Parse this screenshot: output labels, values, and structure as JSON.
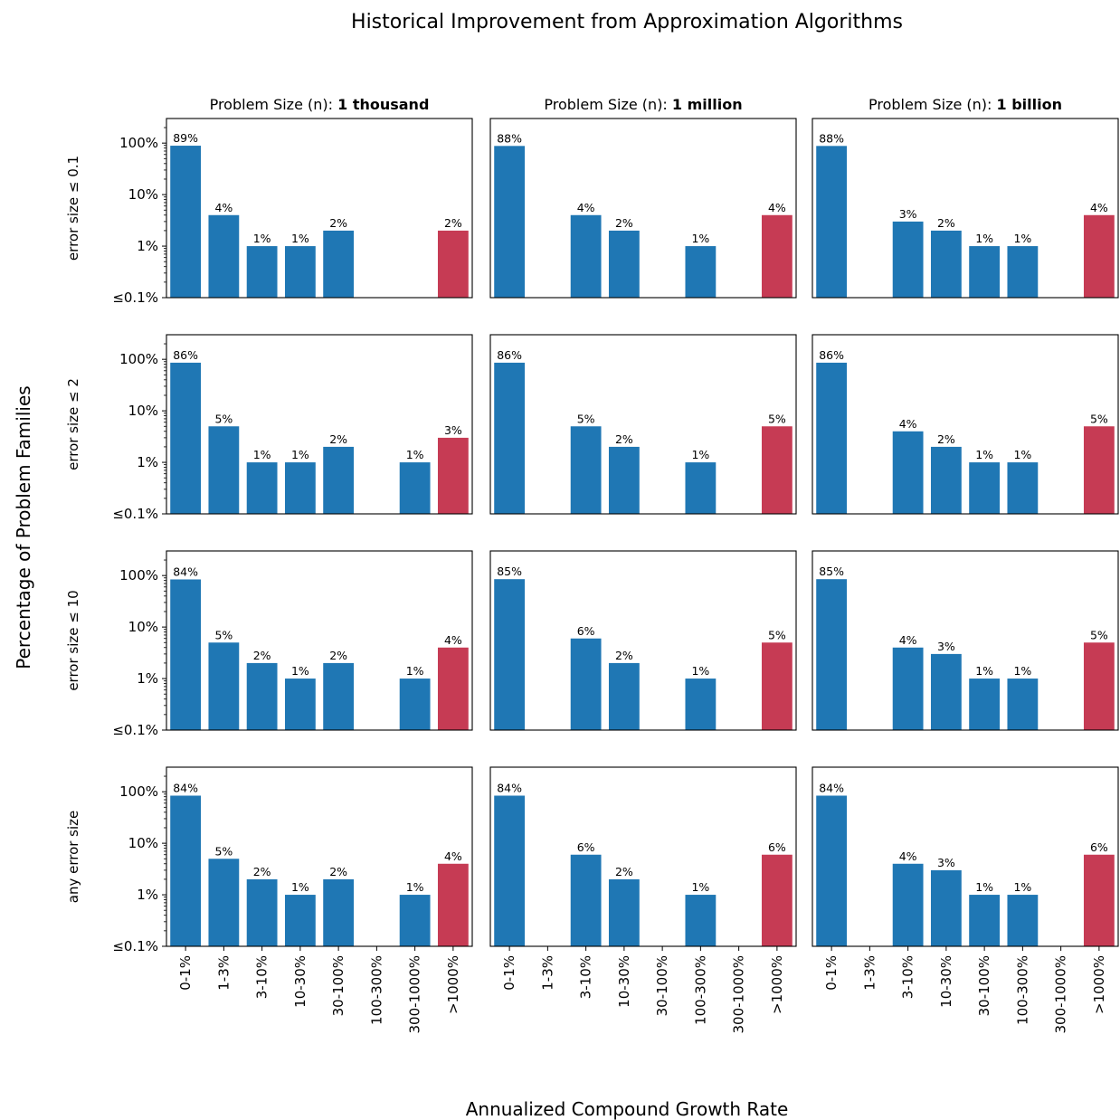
{
  "chart_data": {
    "type": "bar",
    "title": "Historical Improvement from Approximation Algorithms",
    "xlabel": "Annualized Compound Growth Rate",
    "ylabel": "Percentage of Problem Families",
    "yscale": "log",
    "ylim": [
      0.1,
      300
    ],
    "ytick_labels": [
      "≤0.1%",
      "1%",
      "10%",
      "100%"
    ],
    "ytick_values": [
      0.1,
      1,
      10,
      100
    ],
    "col_title_prefix": "Problem Size (n): ",
    "columns": [
      "1 thousand",
      "1 million",
      "1 billion"
    ],
    "rows": [
      "error size ≤ 0.1",
      "error size ≤ 2",
      "error size ≤ 10",
      "any error size"
    ],
    "categories": [
      "0-1%",
      "1-3%",
      "3-10%",
      "10-30%",
      "30-100%",
      "100-300%",
      "300-1000%",
      ">1000%"
    ],
    "colors": {
      "normal": "#1f77b4",
      "highlight": "#c63b54"
    },
    "highlight_category": ">1000%",
    "panels": [
      {
        "row": 0,
        "col": 0,
        "values": [
          89,
          4,
          1,
          1,
          2,
          null,
          null,
          2
        ],
        "labels": [
          "89%",
          "4%",
          "1%",
          "1%",
          "2%",
          "",
          "",
          "2%"
        ]
      },
      {
        "row": 0,
        "col": 1,
        "values": [
          88,
          null,
          4,
          2,
          null,
          1,
          null,
          4
        ],
        "labels": [
          "88%",
          "",
          "4%",
          "2%",
          "",
          "1%",
          "",
          "4%"
        ]
      },
      {
        "row": 0,
        "col": 2,
        "values": [
          88,
          null,
          3,
          2,
          1,
          1,
          null,
          4
        ],
        "labels": [
          "88%",
          "",
          "3%",
          "2%",
          "1%",
          "1%",
          "",
          "4%"
        ]
      },
      {
        "row": 1,
        "col": 0,
        "values": [
          86,
          5,
          1,
          1,
          2,
          null,
          1,
          3
        ],
        "labels": [
          "86%",
          "5%",
          "1%",
          "1%",
          "2%",
          "",
          "1%",
          "3%"
        ]
      },
      {
        "row": 1,
        "col": 1,
        "values": [
          86,
          null,
          5,
          2,
          null,
          1,
          null,
          5
        ],
        "labels": [
          "86%",
          "",
          "5%",
          "2%",
          "",
          "1%",
          "",
          "5%"
        ]
      },
      {
        "row": 1,
        "col": 2,
        "values": [
          86,
          null,
          4,
          2,
          1,
          1,
          null,
          5
        ],
        "labels": [
          "86%",
          "",
          "4%",
          "2%",
          "1%",
          "1%",
          "",
          "5%"
        ]
      },
      {
        "row": 2,
        "col": 0,
        "values": [
          84,
          5,
          2,
          1,
          2,
          null,
          1,
          4
        ],
        "labels": [
          "84%",
          "5%",
          "2%",
          "1%",
          "2%",
          "",
          "1%",
          "4%"
        ]
      },
      {
        "row": 2,
        "col": 1,
        "values": [
          85,
          null,
          6,
          2,
          null,
          1,
          null,
          5
        ],
        "labels": [
          "85%",
          "",
          "6%",
          "2%",
          "",
          "1%",
          "",
          "5%"
        ]
      },
      {
        "row": 2,
        "col": 2,
        "values": [
          85,
          null,
          4,
          3,
          1,
          1,
          null,
          5
        ],
        "labels": [
          "85%",
          "",
          "4%",
          "3%",
          "1%",
          "1%",
          "",
          "5%"
        ]
      },
      {
        "row": 3,
        "col": 0,
        "values": [
          84,
          5,
          2,
          1,
          2,
          null,
          1,
          4
        ],
        "labels": [
          "84%",
          "5%",
          "2%",
          "1%",
          "2%",
          "",
          "1%",
          "4%"
        ]
      },
      {
        "row": 3,
        "col": 1,
        "values": [
          84,
          null,
          6,
          2,
          null,
          1,
          null,
          6
        ],
        "labels": [
          "84%",
          "",
          "6%",
          "2%",
          "",
          "1%",
          "",
          "6%"
        ]
      },
      {
        "row": 3,
        "col": 2,
        "values": [
          84,
          null,
          4,
          3,
          1,
          1,
          null,
          6
        ],
        "labels": [
          "84%",
          "",
          "4%",
          "3%",
          "1%",
          "1%",
          "",
          "6%"
        ]
      }
    ]
  }
}
